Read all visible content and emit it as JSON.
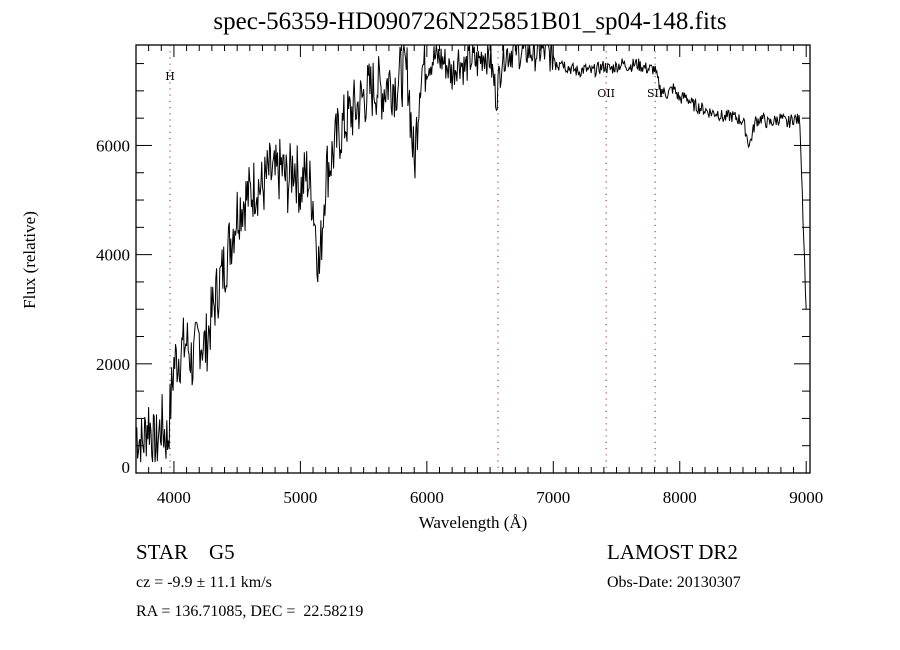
{
  "chart_data": {
    "type": "line",
    "title": "spec-56359-HD090726N225851B01_sp04-148.fits",
    "xlabel": "Wavelength (Å)",
    "ylabel": "Flux (relative)",
    "xlim": [
      3700,
      9030
    ],
    "ylim": [
      0,
      7840
    ],
    "xticks": [
      4000,
      5000,
      6000,
      7000,
      8000,
      9000
    ],
    "xtick_labels": [
      "4000",
      "5000",
      "6000",
      "7000",
      "8000",
      "9000"
    ],
    "yticks": [
      0,
      2000,
      4000,
      6000
    ],
    "ytick_labels": [
      "0",
      "2000",
      "4000",
      "6000"
    ],
    "grid": false,
    "lines": [
      {
        "label": "H",
        "x": 3969
      },
      {
        "label": "",
        "x": 6563
      },
      {
        "label": "OII",
        "x": 7418
      },
      {
        "label": "SII",
        "x": 7805
      }
    ],
    "series": [
      {
        "name": "spectrum",
        "x": [
          3700,
          3750,
          3800,
          3850,
          3900,
          3950,
          4000,
          4050,
          4100,
          4150,
          4200,
          4250,
          4300,
          4350,
          4400,
          4450,
          4500,
          4550,
          4600,
          4650,
          4700,
          4750,
          4800,
          4850,
          4900,
          4950,
          5000,
          5050,
          5100,
          5150,
          5200,
          5250,
          5300,
          5350,
          5400,
          5450,
          5500,
          5550,
          5600,
          5650,
          5700,
          5750,
          5800,
          5850,
          5900,
          5950,
          6000,
          6050,
          6100,
          6150,
          6200,
          6250,
          6300,
          6350,
          6400,
          6450,
          6500,
          6550,
          6600,
          6650,
          6700,
          6750,
          6800,
          6850,
          6900,
          6950,
          7000,
          7050,
          7100,
          7150,
          7200,
          7250,
          7300,
          7350,
          7400,
          7450,
          7500,
          7550,
          7600,
          7650,
          7700,
          7750,
          7800,
          7850,
          7900,
          7950,
          8000,
          8050,
          8100,
          8150,
          8200,
          8250,
          8300,
          8350,
          8400,
          8450,
          8500,
          8550,
          8600,
          8650,
          8700,
          8750,
          8800,
          8850,
          8900,
          8950,
          9000
        ],
        "y": [
          800,
          500,
          1000,
          400,
          900,
          600,
          2000,
          2200,
          2400,
          2000,
          2500,
          2300,
          2900,
          3400,
          3800,
          4300,
          4800,
          5000,
          5100,
          5300,
          5200,
          5500,
          5400,
          5600,
          5300,
          5700,
          5200,
          5500,
          5000,
          3700,
          5500,
          5800,
          6200,
          6400,
          6600,
          6700,
          6900,
          7000,
          7100,
          7000,
          7200,
          7100,
          7300,
          7300,
          5600,
          7400,
          7500,
          7600,
          7600,
          7500,
          7300,
          7600,
          7400,
          7600,
          7500,
          7700,
          7600,
          6900,
          7700,
          7700,
          7800,
          7700,
          7750,
          7700,
          7750,
          7700,
          7650,
          7600,
          7450,
          7400,
          7350,
          7400,
          7350,
          7400,
          7450,
          7400,
          7450,
          7500,
          7450,
          7500,
          7450,
          7400,
          7400,
          7000,
          6950,
          7050,
          6850,
          6900,
          6750,
          6700,
          6650,
          6600,
          6600,
          6500,
          6550,
          6500,
          6450,
          6000,
          6450,
          6500,
          6400,
          6450,
          6500,
          6400,
          6500,
          6450,
          3000
        ]
      }
    ]
  },
  "info": {
    "object": "STAR    G5",
    "survey": "LAMOST DR2",
    "cz": "cz = -9.9 ± 11.1 km/s",
    "obs_date": "Obs-Date: 20130307",
    "radec": "RA = 136.71085, DEC =  22.58219"
  }
}
